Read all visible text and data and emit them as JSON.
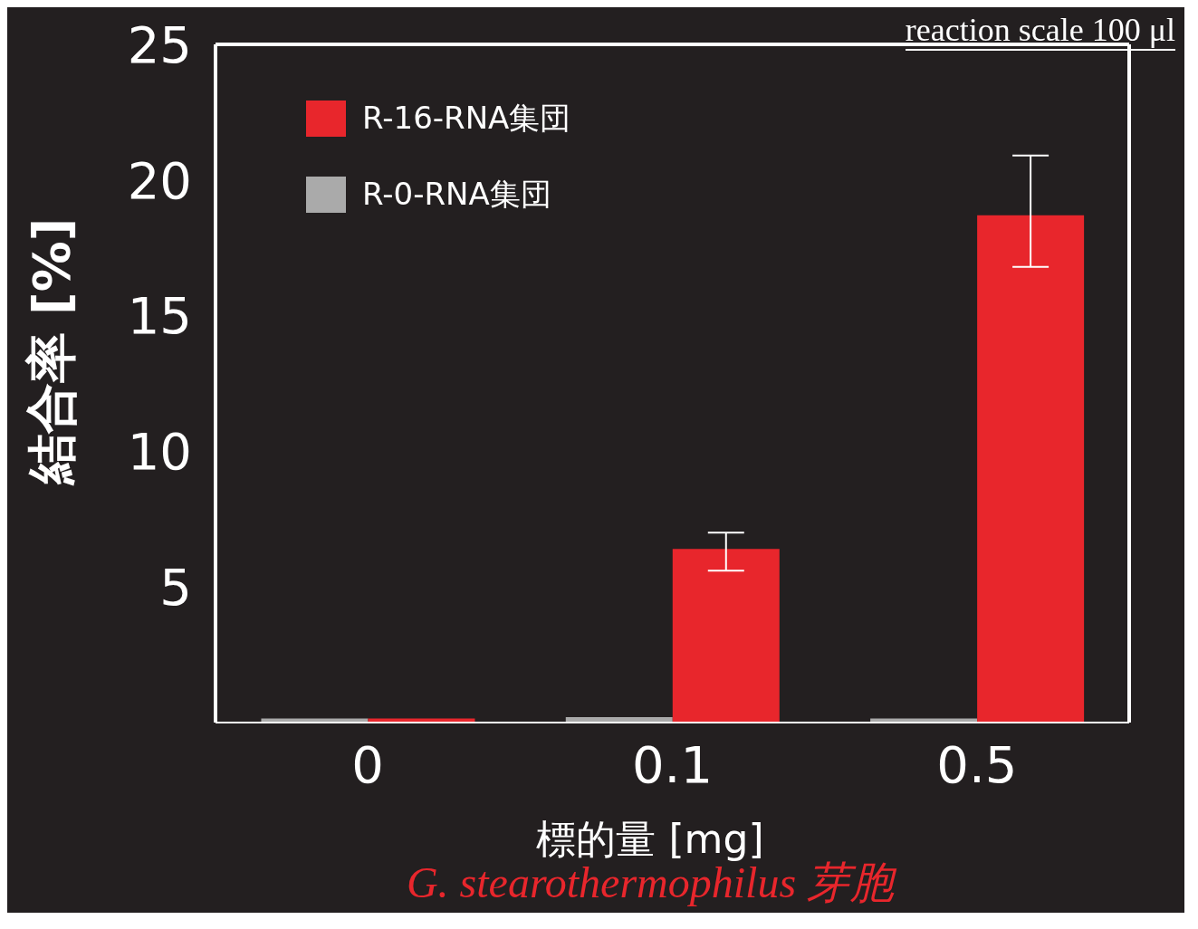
{
  "chart_data": {
    "type": "bar",
    "xlabel": "標的量 [mg]",
    "ylabel": "結合率 [%]",
    "annotations": [
      "reaction scale 100 μl",
      "G. stearothermophilus 芽胞"
    ],
    "categories": [
      "0",
      "0.1",
      "0.5"
    ],
    "series": [
      {
        "name": "R-0-RNA集団",
        "color": "#aaaaaa",
        "values": [
          0.15,
          0.2,
          0.15
        ]
      },
      {
        "name": "R-16-RNA集団",
        "color": "#e8262c",
        "values": [
          0.15,
          6.4,
          18.7
        ],
        "errors": [
          null,
          [
            5.6,
            7.0
          ],
          [
            16.8,
            20.9
          ]
        ]
      }
    ],
    "ylim": [
      0,
      25
    ],
    "yticks": [
      5,
      10,
      15,
      20,
      25
    ],
    "grid": false,
    "legend": "top left"
  }
}
